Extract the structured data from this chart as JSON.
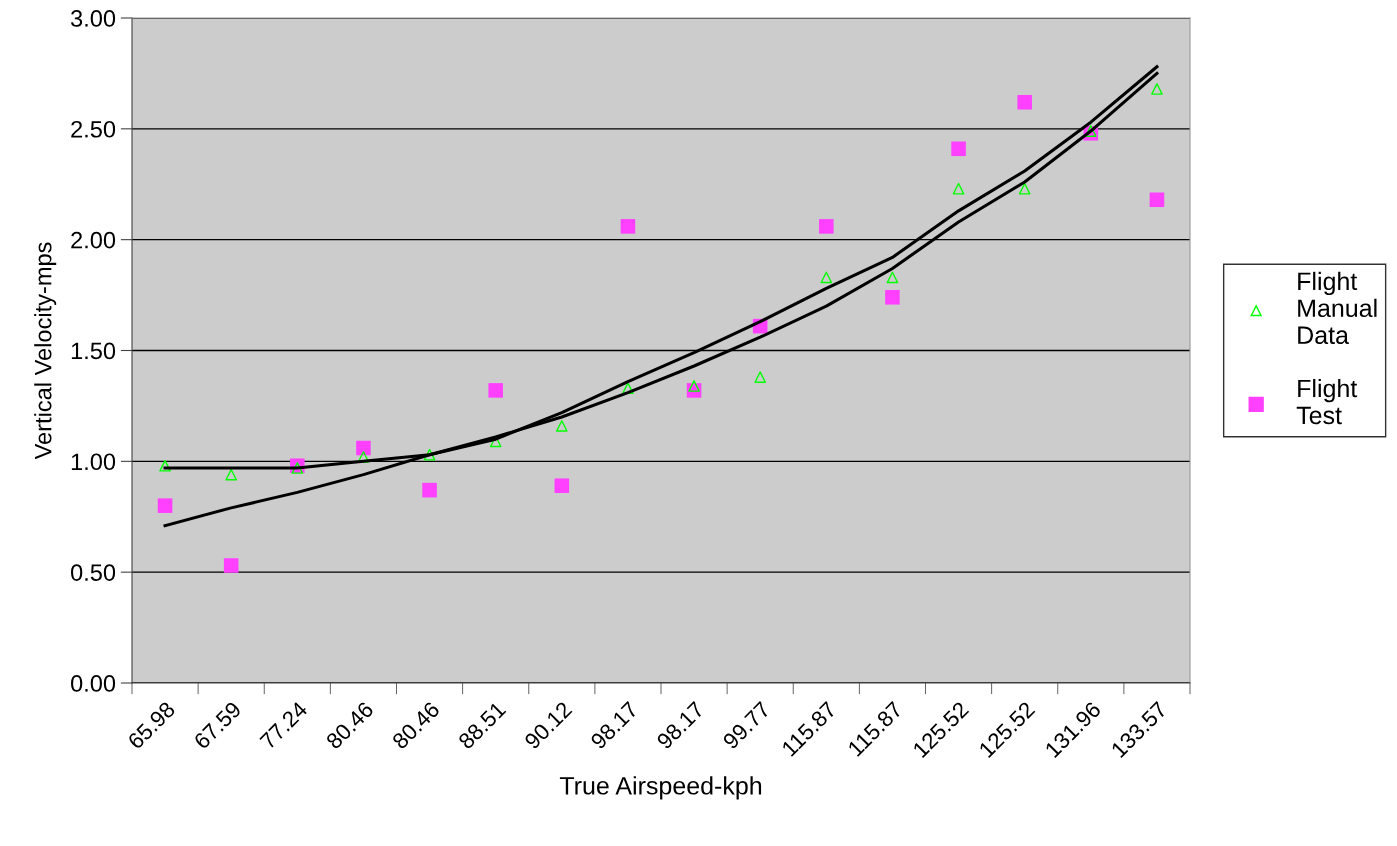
{
  "chart_data": {
    "type": "scatter",
    "xlabel": "True Airspeed-kph",
    "ylabel": "Vertical Velocity-mps",
    "categories": [
      "65.98",
      "67.59",
      "77.24",
      "80.46",
      "80.46",
      "88.51",
      "90.12",
      "98.17",
      "98.17",
      "99.77",
      "115.87",
      "115.87",
      "125.52",
      "125.52",
      "131.96",
      "133.57"
    ],
    "series": [
      {
        "name": "Flight Manual Data",
        "color": "#00ff00",
        "marker": "triangle",
        "values": [
          0.98,
          0.94,
          0.97,
          1.02,
          1.03,
          1.09,
          1.16,
          1.33,
          1.34,
          1.38,
          1.83,
          1.83,
          2.23,
          2.23,
          2.49,
          2.68
        ]
      },
      {
        "name": "Flight Test",
        "color": "#ff40ff",
        "marker": "square",
        "values": [
          0.8,
          0.53,
          0.98,
          1.06,
          0.87,
          1.32,
          0.89,
          2.06,
          1.32,
          1.61,
          2.06,
          1.74,
          2.41,
          2.62,
          2.48,
          2.18
        ]
      },
      {
        "type": "line",
        "color": "#000000",
        "marker": "none",
        "values": [
          0.97,
          0.97,
          0.97,
          1.0,
          1.03,
          1.1,
          1.22,
          1.36,
          1.49,
          1.63,
          1.78,
          1.92,
          2.13,
          2.31,
          2.53,
          2.78
        ]
      },
      {
        "type": "line",
        "color": "#000000",
        "marker": "none",
        "values": [
          0.71,
          0.79,
          0.86,
          0.94,
          1.03,
          1.11,
          1.2,
          1.31,
          1.43,
          1.56,
          1.7,
          1.87,
          2.08,
          2.26,
          2.49,
          2.75
        ]
      }
    ],
    "ylim": [
      0,
      3
    ],
    "yticks": [
      {
        "value": 0,
        "label": "0.00"
      },
      {
        "value": 0.5,
        "label": "0.50"
      },
      {
        "value": 1,
        "label": "1.00"
      },
      {
        "value": 1.5,
        "label": "1.50"
      },
      {
        "value": 2,
        "label": "2.00"
      },
      {
        "value": 2.5,
        "label": "2.50"
      },
      {
        "value": 3,
        "label": "3.00"
      }
    ],
    "grid": "y",
    "legend": "right"
  }
}
